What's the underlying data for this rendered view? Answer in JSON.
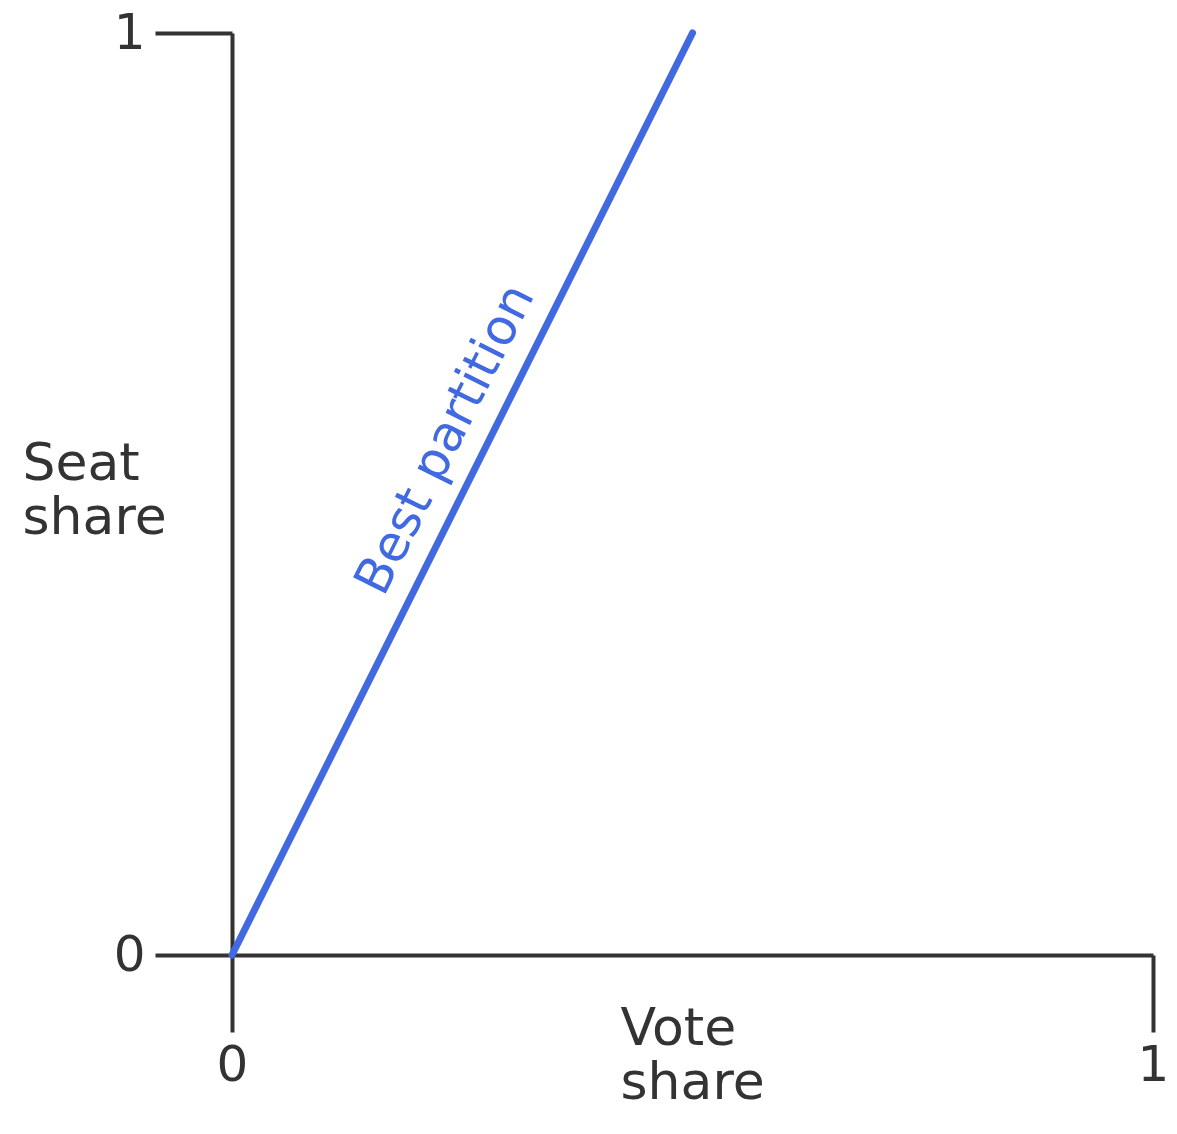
{
  "chart_data": {
    "type": "line",
    "xlabel": "Vote share",
    "ylabel": "Seat share",
    "x": [
      0,
      0.5
    ],
    "series": [
      {
        "color": "#4169e1",
        "values": [
          0,
          1
        ]
      }
    ],
    "xlim": [
      0,
      1
    ],
    "ylim": [
      0,
      1
    ],
    "xticks": [
      0,
      1
    ],
    "yticks": [
      0,
      1
    ],
    "annotations": [
      {
        "text": "Best partition",
        "x": 0.27,
        "y": 0.54
      }
    ]
  }
}
